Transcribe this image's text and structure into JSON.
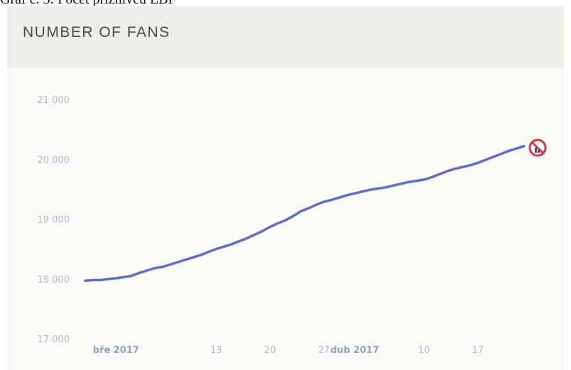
{
  "caption": "Graf č. 3: Počet příznivců LBF",
  "title": "NUMBER OF FANS",
  "icon": "no-data-prohibited-icon",
  "colors": {
    "line": "#5b6bd9",
    "tick": "#a7bfd3",
    "header_bg": "#eeede8",
    "panel_bg": "#fbfaf7"
  },
  "chart_data": {
    "type": "line",
    "title": "NUMBER OF FANS",
    "xlabel": "",
    "ylabel": "",
    "ylim": [
      17000,
      21000
    ],
    "yticks": [
      17000,
      18000,
      19000,
      20000,
      21000
    ],
    "ytick_labels": [
      "17 000",
      "18 000",
      "19 000",
      "20 000",
      "21 000"
    ],
    "xticks": [
      {
        "day": 4,
        "label": "bře 2017",
        "month": true
      },
      {
        "day": 17,
        "label": "13",
        "month": false
      },
      {
        "day": 24,
        "label": "20",
        "month": false
      },
      {
        "day": 31,
        "label": "27",
        "month": false
      },
      {
        "day": 35,
        "label": "dub 2017",
        "month": true
      },
      {
        "day": 44,
        "label": "10",
        "month": false
      },
      {
        "day": 51,
        "label": "17",
        "month": false
      }
    ],
    "grid": false,
    "legend": "none",
    "series": [
      {
        "values": [
          [
            0,
            17970
          ],
          [
            1,
            17980
          ],
          [
            2,
            17980
          ],
          [
            3,
            18000
          ],
          [
            4,
            18010
          ],
          [
            5,
            18030
          ],
          [
            6,
            18050
          ],
          [
            7,
            18100
          ],
          [
            8,
            18140
          ],
          [
            9,
            18180
          ],
          [
            10,
            18200
          ],
          [
            11,
            18240
          ],
          [
            12,
            18280
          ],
          [
            13,
            18320
          ],
          [
            14,
            18360
          ],
          [
            15,
            18400
          ],
          [
            16,
            18450
          ],
          [
            17,
            18500
          ],
          [
            18,
            18540
          ],
          [
            19,
            18580
          ],
          [
            20,
            18630
          ],
          [
            21,
            18680
          ],
          [
            22,
            18740
          ],
          [
            23,
            18800
          ],
          [
            24,
            18870
          ],
          [
            25,
            18930
          ],
          [
            26,
            18980
          ],
          [
            27,
            19050
          ],
          [
            28,
            19130
          ],
          [
            29,
            19180
          ],
          [
            30,
            19240
          ],
          [
            31,
            19290
          ],
          [
            32,
            19320
          ],
          [
            33,
            19360
          ],
          [
            34,
            19400
          ],
          [
            35,
            19430
          ],
          [
            36,
            19460
          ],
          [
            37,
            19490
          ],
          [
            38,
            19510
          ],
          [
            39,
            19530
          ],
          [
            40,
            19560
          ],
          [
            41,
            19590
          ],
          [
            42,
            19620
          ],
          [
            43,
            19640
          ],
          [
            44,
            19660
          ],
          [
            45,
            19700
          ],
          [
            46,
            19750
          ],
          [
            47,
            19800
          ],
          [
            48,
            19840
          ],
          [
            49,
            19870
          ],
          [
            50,
            19900
          ],
          [
            51,
            19940
          ],
          [
            52,
            19990
          ],
          [
            53,
            20040
          ],
          [
            54,
            20090
          ],
          [
            55,
            20140
          ],
          [
            56,
            20180
          ],
          [
            57,
            20220
          ]
        ]
      }
    ]
  }
}
